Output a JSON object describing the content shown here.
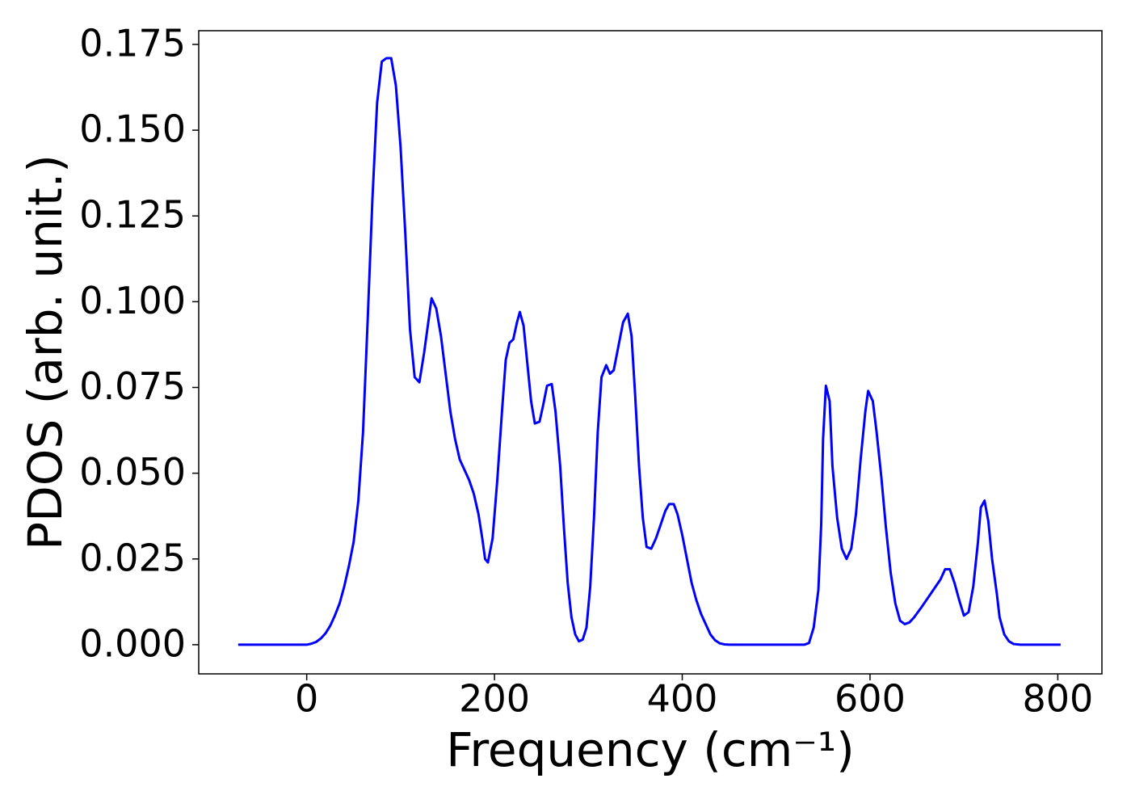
{
  "chart_data": {
    "type": "line",
    "xlabel": "Frequency (cm⁻¹)",
    "ylabel": "PDOS (arb. unit.)",
    "color": "#0000ff",
    "x": [
      -73,
      -50,
      -25,
      0,
      5,
      10,
      15,
      20,
      25,
      30,
      35,
      40,
      45,
      50,
      55,
      60,
      65,
      70,
      75,
      80,
      85,
      90,
      95,
      100,
      105,
      110,
      115,
      120,
      125,
      130,
      133,
      138,
      143,
      148,
      153,
      158,
      163,
      168,
      173,
      178,
      183,
      187,
      190,
      193,
      198,
      203,
      208,
      212,
      216,
      220,
      224,
      227,
      231,
      235,
      239,
      243,
      248,
      252,
      256,
      261,
      265,
      270,
      274,
      278,
      282,
      286,
      290,
      294,
      298,
      302,
      306,
      310,
      314,
      319,
      323,
      327,
      332,
      337,
      342,
      346,
      350,
      354,
      358,
      362,
      367,
      372,
      377,
      382,
      386,
      391,
      395,
      400,
      405,
      410,
      415,
      420,
      425,
      430,
      435,
      440,
      445,
      450,
      500,
      530,
      535,
      540,
      545,
      548,
      550,
      553,
      557,
      560,
      565,
      570,
      575,
      580,
      585,
      590,
      595,
      598,
      603,
      607,
      612,
      617,
      622,
      627,
      632,
      637,
      642,
      647,
      655,
      665,
      675,
      680,
      685,
      690,
      695,
      700,
      705,
      710,
      715,
      718,
      722,
      726,
      730,
      735,
      738,
      743,
      748,
      753,
      760,
      803
    ],
    "values": [
      0,
      0,
      0,
      0,
      0.0003,
      0.0008,
      0.0018,
      0.0033,
      0.0055,
      0.0085,
      0.012,
      0.017,
      0.023,
      0.03,
      0.042,
      0.062,
      0.095,
      0.13,
      0.158,
      0.17,
      0.171,
      0.171,
      0.163,
      0.145,
      0.12,
      0.092,
      0.078,
      0.0765,
      0.085,
      0.095,
      0.101,
      0.098,
      0.09,
      0.079,
      0.068,
      0.06,
      0.054,
      0.051,
      0.048,
      0.044,
      0.038,
      0.031,
      0.025,
      0.024,
      0.031,
      0.048,
      0.068,
      0.083,
      0.088,
      0.089,
      0.094,
      0.097,
      0.093,
      0.082,
      0.071,
      0.0645,
      0.065,
      0.07,
      0.0755,
      0.076,
      0.068,
      0.052,
      0.034,
      0.018,
      0.008,
      0.003,
      0.001,
      0.0015,
      0.005,
      0.017,
      0.037,
      0.062,
      0.078,
      0.0815,
      0.079,
      0.08,
      0.087,
      0.094,
      0.0965,
      0.09,
      0.072,
      0.052,
      0.037,
      0.0285,
      0.028,
      0.031,
      0.035,
      0.039,
      0.041,
      0.041,
      0.038,
      0.032,
      0.025,
      0.018,
      0.013,
      0.009,
      0.006,
      0.003,
      0.0013,
      0.0004,
      0.0001,
      0,
      0,
      0,
      0.0005,
      0.005,
      0.016,
      0.035,
      0.06,
      0.0755,
      0.071,
      0.052,
      0.037,
      0.028,
      0.025,
      0.028,
      0.038,
      0.054,
      0.068,
      0.074,
      0.071,
      0.062,
      0.049,
      0.034,
      0.021,
      0.012,
      0.007,
      0.006,
      0.0065,
      0.008,
      0.011,
      0.015,
      0.019,
      0.022,
      0.022,
      0.018,
      0.013,
      0.0085,
      0.0095,
      0.017,
      0.03,
      0.04,
      0.042,
      0.036,
      0.025,
      0.015,
      0.008,
      0.003,
      0.001,
      0.0002,
      0,
      0
    ],
    "xlim": [
      -115,
      847
    ],
    "ylim": [
      -0.0085,
      0.179
    ],
    "xticks": [
      0,
      200,
      400,
      600,
      800
    ],
    "yticks": [
      {
        "value": 0,
        "label": "0.000"
      },
      0.025,
      {
        "value": 0.05,
        "label": "0.050"
      },
      0.075,
      {
        "value": 0.1,
        "label": "0.100"
      },
      0.125,
      {
        "value": 0.15,
        "label": "0.150"
      },
      0.175
    ],
    "grid": false
  }
}
